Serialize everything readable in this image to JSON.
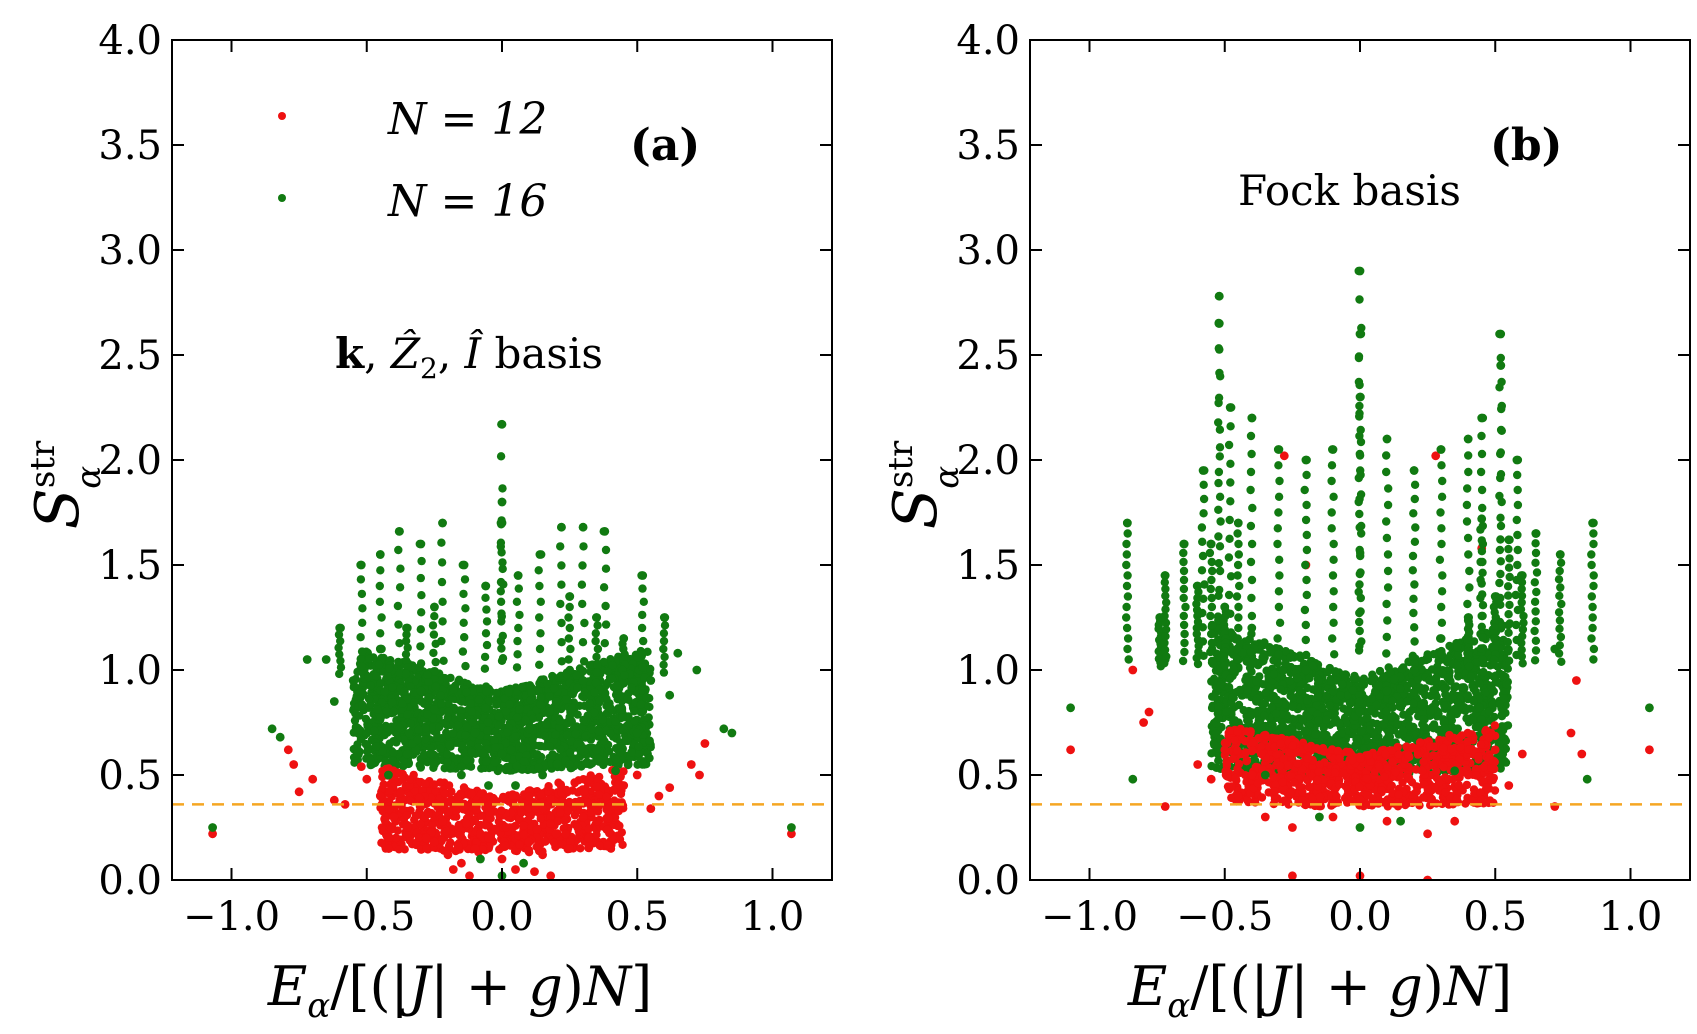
{
  "chart_data": [
    {
      "type": "scatter",
      "panel_label": "(a)",
      "annotation": "k, Ẑ₂, Î basis",
      "xlabel": "E_α/[(|J| + g)N]",
      "ylabel": "S_α^str",
      "xlim": [
        -1.22,
        1.22
      ],
      "ylim": [
        0.0,
        4.0
      ],
      "xticks": [
        -1.0,
        -0.5,
        0.0,
        0.5,
        1.0
      ],
      "xtick_labels": [
        "−1.0",
        "−0.5",
        "0.0",
        "0.5",
        "1.0"
      ],
      "yticks": [
        0.0,
        0.5,
        1.0,
        1.5,
        2.0,
        2.5,
        3.0,
        3.5,
        4.0
      ],
      "ytick_labels": [
        "0.0",
        "0.5",
        "1.0",
        "1.5",
        "2.0",
        "2.5",
        "3.0",
        "3.5",
        "4.0"
      ],
      "reference_line": {
        "y": 0.36,
        "color": "#f5a623",
        "style": "dashed"
      },
      "legend": [
        {
          "label": "N = 12",
          "color": "#ee1111"
        },
        {
          "label": "N = 16",
          "color": "#117a11"
        }
      ],
      "series": [
        {
          "name": "N = 12",
          "color": "#ee1111",
          "points": [
            [
              -1.07,
              0.22
            ],
            [
              1.07,
              0.22
            ],
            [
              -0.79,
              0.62
            ],
            [
              -0.77,
              0.55
            ],
            [
              -0.75,
              0.42
            ],
            [
              -0.7,
              0.48
            ],
            [
              -0.62,
              0.38
            ],
            [
              0.62,
              0.44
            ],
            [
              0.7,
              0.55
            ],
            [
              0.73,
              0.5
            ],
            [
              0.75,
              0.65
            ],
            [
              -0.4,
              0.3
            ],
            [
              -0.35,
              0.25
            ],
            [
              -0.25,
              0.18
            ],
            [
              -0.2,
              0.12
            ],
            [
              -0.15,
              0.08
            ],
            [
              -0.1,
              0.15
            ],
            [
              -0.05,
              0.2
            ],
            [
              0.0,
              0.1
            ],
            [
              0.05,
              0.05
            ],
            [
              0.1,
              0.18
            ],
            [
              0.15,
              0.12
            ],
            [
              0.2,
              0.22
            ],
            [
              0.25,
              0.15
            ],
            [
              0.3,
              0.3
            ],
            [
              0.35,
              0.28
            ],
            [
              0.4,
              0.35
            ],
            [
              0.45,
              0.45
            ],
            [
              -0.45,
              0.4
            ],
            [
              -0.3,
              0.35
            ],
            [
              -0.22,
              0.28
            ],
            [
              -0.18,
              0.05
            ],
            [
              0.18,
              0.02
            ],
            [
              0.28,
              0.25
            ],
            [
              0.5,
              0.5
            ],
            [
              -0.5,
              0.48
            ],
            [
              -0.12,
              0.02
            ],
            [
              0.12,
              0.04
            ],
            [
              -0.08,
              0.22
            ],
            [
              0.08,
              0.26
            ],
            [
              -0.28,
              0.2
            ],
            [
              0.32,
              0.2
            ],
            [
              -0.58,
              0.36
            ],
            [
              0.58,
              0.4
            ],
            [
              -0.52,
              0.54
            ],
            [
              0.55,
              0.34
            ]
          ]
        },
        {
          "name": "N = 16",
          "color": "#117a11",
          "points": [
            [
              -1.07,
              0.25
            ],
            [
              1.07,
              0.25
            ],
            [
              -0.85,
              0.72
            ],
            [
              -0.82,
              0.68
            ],
            [
              0.82,
              0.72
            ],
            [
              0.85,
              0.7
            ],
            [
              -0.72,
              1.05
            ],
            [
              0.72,
              1.0
            ],
            [
              -0.65,
              1.05
            ],
            [
              0.65,
              1.08
            ],
            [
              -0.6,
              1.2
            ],
            [
              0.6,
              1.25
            ],
            [
              -0.52,
              1.5
            ],
            [
              0.52,
              1.45
            ],
            [
              -0.45,
              1.55
            ],
            [
              -0.38,
              1.66
            ],
            [
              0.38,
              1.66
            ],
            [
              -0.3,
              1.6
            ],
            [
              0.3,
              1.68
            ],
            [
              -0.22,
              1.7
            ],
            [
              0.22,
              1.68
            ],
            [
              -0.14,
              1.5
            ],
            [
              0.14,
              1.55
            ],
            [
              0.0,
              2.17
            ],
            [
              0.0,
              1.8
            ],
            [
              0.0,
              1.7
            ],
            [
              -0.06,
              1.4
            ],
            [
              0.06,
              1.45
            ],
            [
              -0.25,
              1.3
            ],
            [
              0.25,
              1.35
            ],
            [
              -0.35,
              1.2
            ],
            [
              0.35,
              1.25
            ],
            [
              -0.45,
              1.1
            ],
            [
              0.45,
              1.15
            ],
            [
              -0.55,
              0.95
            ],
            [
              0.55,
              0.95
            ],
            [
              -0.3,
              0.9
            ],
            [
              0.3,
              0.95
            ],
            [
              -0.2,
              0.8
            ],
            [
              0.2,
              0.85
            ],
            [
              -0.1,
              0.7
            ],
            [
              0.1,
              0.72
            ],
            [
              0.0,
              0.6
            ],
            [
              -0.4,
              0.8
            ],
            [
              0.4,
              0.82
            ],
            [
              -0.5,
              0.7
            ],
            [
              0.5,
              0.7
            ],
            [
              -0.35,
              0.6
            ],
            [
              0.35,
              0.62
            ],
            [
              -0.25,
              0.55
            ],
            [
              0.25,
              0.55
            ],
            [
              -0.15,
              0.5
            ],
            [
              0.15,
              0.5
            ],
            [
              -0.05,
              0.45
            ],
            [
              0.05,
              0.45
            ],
            [
              -0.08,
              0.1
            ],
            [
              0.08,
              0.08
            ],
            [
              0.0,
              0.02
            ],
            [
              -0.62,
              0.85
            ],
            [
              0.62,
              0.88
            ],
            [
              -0.42,
              0.5
            ],
            [
              0.42,
              0.52
            ]
          ]
        }
      ],
      "clusters": [
        {
          "series": "N = 16",
          "xmin": -0.55,
          "xmax": 0.55,
          "ymin": 0.45,
          "ymax": 1.05
        },
        {
          "series": "N = 12",
          "xmin": -0.45,
          "xmax": 0.45,
          "ymin": 0.08,
          "ymax": 0.5
        }
      ]
    },
    {
      "type": "scatter",
      "panel_label": "(b)",
      "annotation": "Fock basis",
      "xlabel": "E_α/[(|J| + g)N]",
      "ylabel": "S_α^str",
      "xlim": [
        -1.22,
        1.22
      ],
      "ylim": [
        0.0,
        4.0
      ],
      "xticks": [
        -1.0,
        -0.5,
        0.0,
        0.5,
        1.0
      ],
      "xtick_labels": [
        "−1.0",
        "−0.5",
        "0.0",
        "0.5",
        "1.0"
      ],
      "yticks": [
        0.0,
        0.5,
        1.0,
        1.5,
        2.0,
        2.5,
        3.0,
        3.5,
        4.0
      ],
      "ytick_labels": [
        "0.0",
        "0.5",
        "1.0",
        "1.5",
        "2.0",
        "2.5",
        "3.0",
        "3.5",
        "4.0"
      ],
      "reference_line": {
        "y": 0.36,
        "color": "#f5a623",
        "style": "dashed"
      },
      "series": [
        {
          "name": "N = 12",
          "color": "#ee1111",
          "points": [
            [
              -1.07,
              0.62
            ],
            [
              1.07,
              0.62
            ],
            [
              -0.84,
              1.0
            ],
            [
              -0.8,
              0.75
            ],
            [
              -0.78,
              0.8
            ],
            [
              -0.72,
              0.35
            ],
            [
              0.72,
              0.35
            ],
            [
              0.78,
              0.7
            ],
            [
              0.8,
              0.95
            ],
            [
              0.82,
              0.6
            ],
            [
              -0.6,
              0.55
            ],
            [
              0.6,
              0.6
            ],
            [
              -0.55,
              0.48
            ],
            [
              0.55,
              0.45
            ],
            [
              -0.45,
              0.4
            ],
            [
              0.45,
              0.38
            ],
            [
              -0.35,
              0.3
            ],
            [
              0.35,
              0.28
            ],
            [
              -0.25,
              0.25
            ],
            [
              0.25,
              0.22
            ],
            [
              -0.25,
              0.02
            ],
            [
              0.25,
              0.0
            ],
            [
              0.0,
              0.02
            ],
            [
              -0.28,
              2.02
            ],
            [
              0.28,
              2.02
            ],
            [
              -0.2,
              1.5
            ],
            [
              0.45,
              1.58
            ],
            [
              -0.1,
              0.3
            ],
            [
              0.1,
              0.28
            ],
            [
              -0.5,
              0.62
            ],
            [
              0.5,
              0.62
            ],
            [
              -0.4,
              0.5
            ],
            [
              0.4,
              0.5
            ]
          ]
        },
        {
          "name": "N = 16",
          "color": "#117a11",
          "points": [
            [
              -1.07,
              0.82
            ],
            [
              1.07,
              0.82
            ],
            [
              -0.86,
              1.7
            ],
            [
              0.86,
              1.7
            ],
            [
              -0.84,
              0.48
            ],
            [
              0.84,
              0.48
            ],
            [
              -0.74,
              1.25
            ],
            [
              -0.72,
              1.45
            ],
            [
              -0.72,
              1.05
            ],
            [
              0.72,
              1.1
            ],
            [
              0.74,
              1.55
            ],
            [
              -0.65,
              1.6
            ],
            [
              0.65,
              1.65
            ],
            [
              -0.58,
              1.95
            ],
            [
              0.58,
              2.0
            ],
            [
              -0.52,
              2.78
            ],
            [
              -0.52,
              2.65
            ],
            [
              0.52,
              2.6
            ],
            [
              0.52,
              2.45
            ],
            [
              -0.48,
              2.25
            ],
            [
              -0.4,
              2.2
            ],
            [
              0.4,
              2.1
            ],
            [
              0.45,
              2.2
            ],
            [
              -0.3,
              2.05
            ],
            [
              0.3,
              2.05
            ],
            [
              -0.2,
              2.0
            ],
            [
              0.2,
              1.95
            ],
            [
              -0.1,
              2.05
            ],
            [
              0.1,
              2.1
            ],
            [
              0.0,
              2.9
            ],
            [
              0.0,
              2.6
            ],
            [
              0.0,
              2.3
            ],
            [
              -0.6,
              1.4
            ],
            [
              0.6,
              1.45
            ],
            [
              -0.5,
              1.3
            ],
            [
              0.5,
              1.35
            ],
            [
              -0.4,
              1.2
            ],
            [
              0.4,
              1.25
            ],
            [
              -0.3,
              1.1
            ],
            [
              0.3,
              1.15
            ],
            [
              -0.2,
              1.0
            ],
            [
              0.2,
              1.0
            ],
            [
              -0.1,
              0.9
            ],
            [
              0.1,
              0.9
            ],
            [
              0.0,
              0.8
            ],
            [
              -0.35,
              0.5
            ],
            [
              0.35,
              0.52
            ],
            [
              -0.15,
              0.3
            ],
            [
              0.15,
              0.28
            ],
            [
              0.0,
              0.25
            ],
            [
              -0.55,
              1.6
            ],
            [
              0.55,
              1.62
            ],
            [
              -0.45,
              1.7
            ],
            [
              0.45,
              1.72
            ]
          ]
        }
      ],
      "clusters": [
        {
          "series": "N = 16",
          "xmin": -0.55,
          "xmax": 0.55,
          "ymin": 0.4,
          "ymax": 1.15
        },
        {
          "series": "N = 12",
          "xmin": -0.5,
          "xmax": 0.5,
          "ymin": 0.3,
          "ymax": 0.7
        }
      ]
    }
  ]
}
